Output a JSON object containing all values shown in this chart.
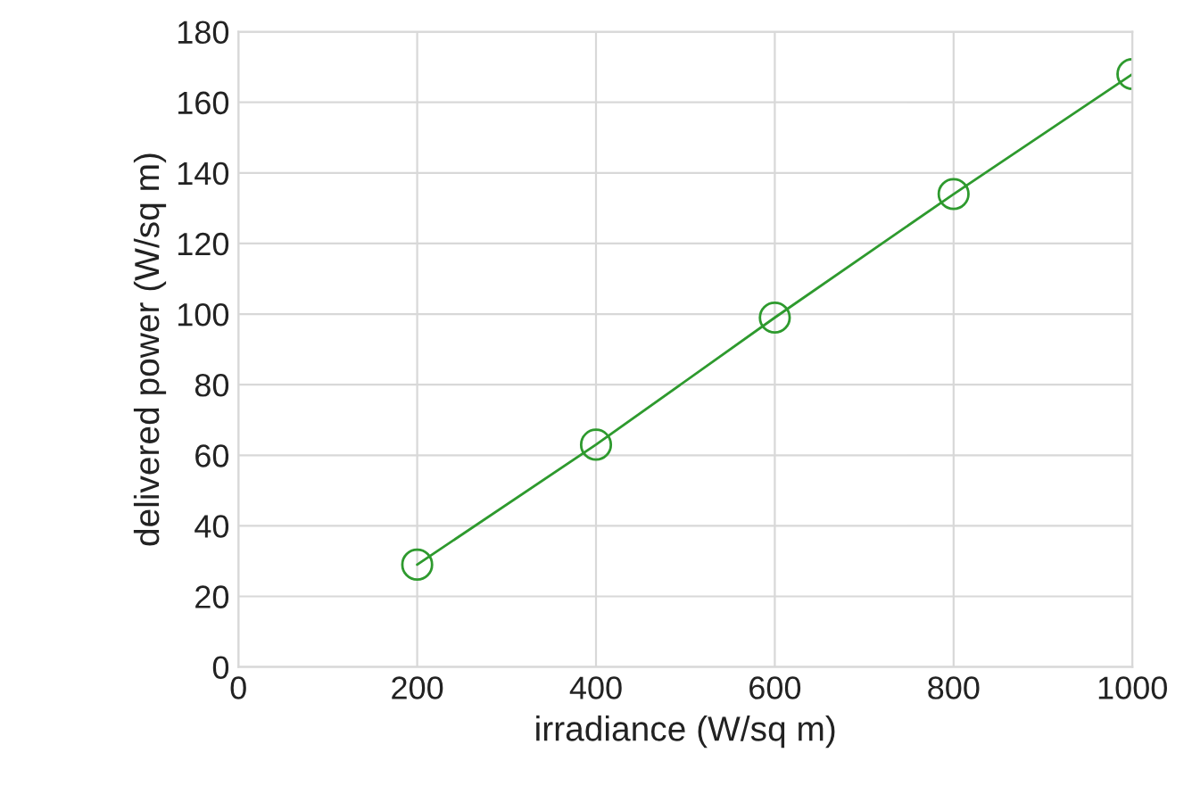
{
  "chart_data": {
    "type": "line",
    "xlabel": "irradiance (W/sq m)",
    "ylabel": "delivered power (W/sq m)",
    "x": [
      200,
      400,
      600,
      800,
      1000
    ],
    "series": [
      {
        "color": "#2e9a2e",
        "values": [
          29,
          63,
          99,
          134,
          168
        ]
      }
    ],
    "xlim": [
      0,
      1000
    ],
    "xticks": [
      0,
      200,
      400,
      600,
      800,
      1000
    ],
    "ylim": [
      0,
      180
    ],
    "yticks": [
      0,
      20,
      40,
      60,
      80,
      100,
      120,
      140,
      160,
      180
    ],
    "grid": true,
    "marker": "circle",
    "line_style": "solid"
  }
}
